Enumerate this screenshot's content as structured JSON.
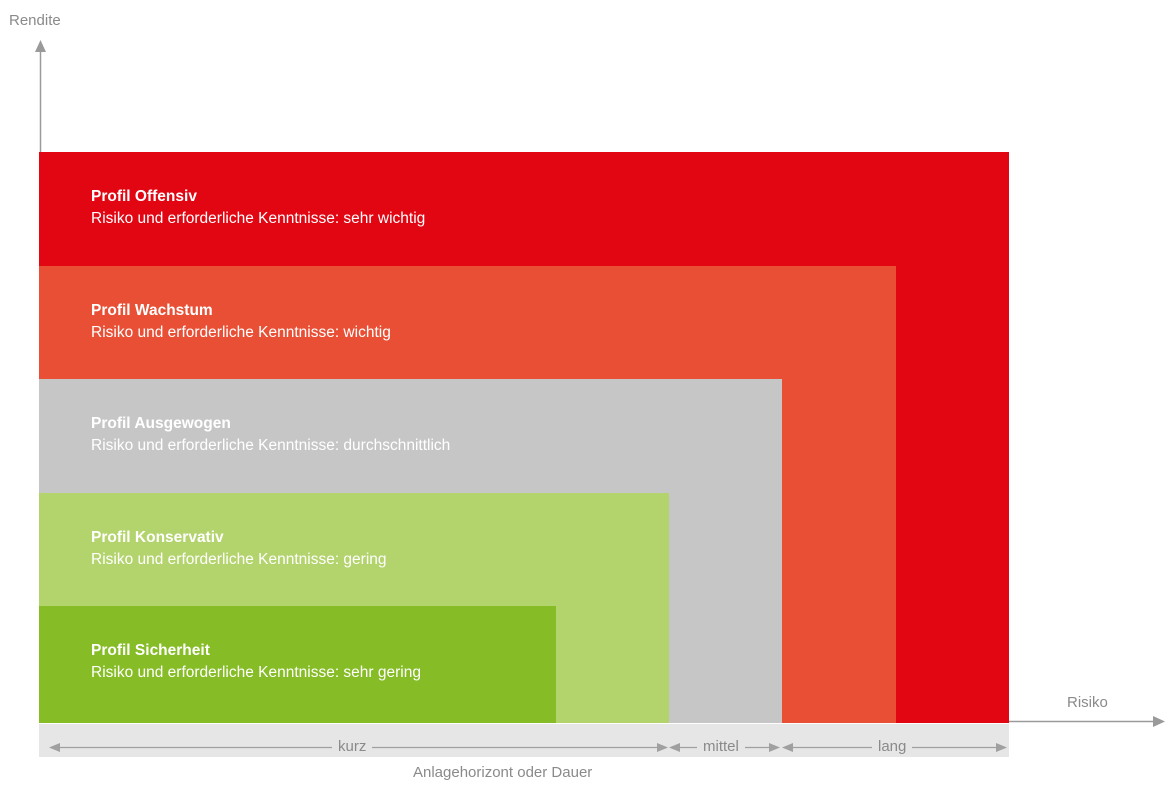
{
  "axes": {
    "y_label": "Rendite",
    "x_label": "Risiko"
  },
  "profiles": [
    {
      "name": "Profil Offensiv",
      "description": "Risiko und erforderliche Kenntnisse: sehr wichtig",
      "color": "#e20613",
      "text_color": "#ffffff"
    },
    {
      "name": "Profil Wachstum",
      "description": "Risiko und erforderliche Kenntnisse: wichtig",
      "color": "#e84f35",
      "text_color": "#ffffff"
    },
    {
      "name": "Profil Ausgewogen",
      "description": "Risiko und erforderliche Kenntnisse: durchschnittlich",
      "color": "#c6c6c6",
      "text_color": "#ffffff"
    },
    {
      "name": "Profil Konservativ",
      "description": "Risiko und erforderliche Kenntnisse: gering",
      "color": "#b3d36c",
      "text_color": "#ffffff"
    },
    {
      "name": "Profil Sicherheit",
      "description": "Risiko und erforderliche Kenntnisse: sehr gering",
      "color": "#86bc25",
      "text_color": "#ffffff"
    }
  ],
  "horizon": {
    "title": "Anlagehorizont oder Dauer",
    "segments": [
      "kurz",
      "mittel",
      "lang"
    ]
  },
  "colors": {
    "axis": "#9a9a9a",
    "band": "#e6e6e6",
    "band_text": "#8a8a8a"
  }
}
